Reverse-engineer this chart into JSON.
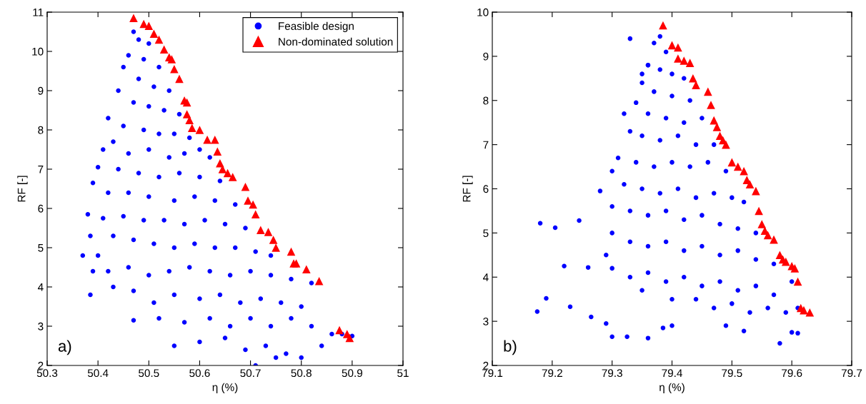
{
  "chart_data": [
    {
      "type": "scatter",
      "xlabel": "η (%)",
      "ylabel": "RF [-]",
      "annotations": [
        "a)"
      ],
      "legend": "top right",
      "grid": false,
      "xlim": [
        50.3,
        51
      ],
      "xticks": [
        50.3,
        50.4,
        50.5,
        50.6,
        50.7,
        50.8,
        50.9,
        51
      ],
      "ylim": [
        2,
        11
      ],
      "yticks": [
        2,
        3,
        4,
        5,
        6,
        7,
        8,
        9,
        10,
        11
      ],
      "series": [
        {
          "name": "Feasible design",
          "color": "#0000ff",
          "marker": "circle",
          "x": [
            50.47,
            50.48,
            50.5,
            50.46,
            50.49,
            50.52,
            50.45,
            50.48,
            50.51,
            50.54,
            50.44,
            50.47,
            50.5,
            50.53,
            50.56,
            50.42,
            50.45,
            50.49,
            50.52,
            50.55,
            50.58,
            50.43,
            50.41,
            50.46,
            50.5,
            50.54,
            50.57,
            50.6,
            50.62,
            50.4,
            50.44,
            50.48,
            50.52,
            50.56,
            50.6,
            50.64,
            50.39,
            50.42,
            50.46,
            50.5,
            50.55,
            50.59,
            50.63,
            50.67,
            50.38,
            50.41,
            50.45,
            50.49,
            50.53,
            50.57,
            50.61,
            50.65,
            50.69,
            50.385,
            50.43,
            50.47,
            50.51,
            50.55,
            50.59,
            50.63,
            50.67,
            50.71,
            50.74,
            50.37,
            50.4,
            50.42,
            50.46,
            50.5,
            50.54,
            50.58,
            50.62,
            50.66,
            50.7,
            50.74,
            50.78,
            50.82,
            50.39,
            50.385,
            50.43,
            50.47,
            50.51,
            50.55,
            50.6,
            50.64,
            50.68,
            50.72,
            50.76,
            50.8,
            50.47,
            50.52,
            50.57,
            50.62,
            50.66,
            50.7,
            50.74,
            50.78,
            50.82,
            50.86,
            50.55,
            50.6,
            50.65,
            50.69,
            50.73,
            50.77,
            50.8,
            50.71,
            50.75,
            50.9,
            50.84,
            50.88
          ],
          "values": [
            10.5,
            10.3,
            10.2,
            9.9,
            9.8,
            9.6,
            9.6,
            9.3,
            9.1,
            9.0,
            9.0,
            8.7,
            8.6,
            8.5,
            8.4,
            8.3,
            8.1,
            8.0,
            7.9,
            7.9,
            7.8,
            7.7,
            7.5,
            7.4,
            7.5,
            7.3,
            7.4,
            7.5,
            7.3,
            7.05,
            7.0,
            6.9,
            6.8,
            6.9,
            6.8,
            6.7,
            6.65,
            6.4,
            6.4,
            6.3,
            6.2,
            6.3,
            6.2,
            6.1,
            5.85,
            5.75,
            5.8,
            5.7,
            5.7,
            5.6,
            5.7,
            5.6,
            5.5,
            5.3,
            5.3,
            5.2,
            5.1,
            5.0,
            5.1,
            5.0,
            5.0,
            4.9,
            4.8,
            4.8,
            4.8,
            4.4,
            4.5,
            4.3,
            4.4,
            4.5,
            4.4,
            4.3,
            4.4,
            4.3,
            4.2,
            4.1,
            4.4,
            3.8,
            4.0,
            3.9,
            3.6,
            3.8,
            3.7,
            3.8,
            3.6,
            3.7,
            3.6,
            3.5,
            3.15,
            3.2,
            3.1,
            3.2,
            3.0,
            3.2,
            3.0,
            3.2,
            3.0,
            2.8,
            2.5,
            2.6,
            2.7,
            2.4,
            2.5,
            2.3,
            2.2,
            2.0,
            2.2,
            2.75,
            2.5,
            2.8
          ]
        },
        {
          "name": "Non-dominated solution",
          "color": "#ff0000",
          "marker": "triangle",
          "x": [
            50.47,
            50.49,
            50.5,
            50.51,
            50.52,
            50.53,
            50.54,
            50.545,
            50.55,
            50.56,
            50.57,
            50.575,
            50.575,
            50.58,
            50.585,
            50.6,
            50.615,
            50.63,
            50.635,
            50.64,
            50.645,
            50.655,
            50.665,
            50.69,
            50.695,
            50.705,
            50.71,
            50.72,
            50.735,
            50.745,
            50.75,
            50.78,
            50.785,
            50.79,
            50.81,
            50.835,
            50.875,
            50.89,
            50.895
          ],
          "values": [
            10.85,
            10.7,
            10.65,
            10.45,
            10.3,
            10.05,
            9.85,
            9.8,
            9.55,
            9.3,
            8.75,
            8.7,
            8.4,
            8.25,
            8.05,
            8.0,
            7.75,
            7.75,
            7.45,
            7.15,
            7.0,
            6.9,
            6.8,
            6.55,
            6.2,
            6.1,
            5.85,
            5.45,
            5.4,
            5.2,
            5.0,
            4.9,
            4.6,
            4.6,
            4.45,
            4.15,
            2.9,
            2.8,
            2.7
          ]
        }
      ]
    },
    {
      "type": "scatter",
      "xlabel": "η (%)",
      "ylabel": "RF [-]",
      "annotations": [
        "b)"
      ],
      "grid": false,
      "xlim": [
        79.1,
        79.7
      ],
      "xticks": [
        79.1,
        79.2,
        79.3,
        79.4,
        79.5,
        79.6,
        79.7
      ],
      "ylim": [
        2,
        10
      ],
      "yticks": [
        2,
        3,
        4,
        5,
        6,
        7,
        8,
        9,
        10
      ],
      "series": [
        {
          "color": "#0000ff",
          "marker": "circle",
          "x": [
            79.38,
            79.37,
            79.39,
            79.36,
            79.38,
            79.4,
            79.42,
            79.35,
            79.37,
            79.4,
            79.43,
            79.34,
            79.36,
            79.39,
            79.42,
            79.45,
            79.32,
            79.33,
            79.35,
            79.38,
            79.41,
            79.44,
            79.47,
            79.31,
            79.34,
            79.37,
            79.4,
            79.43,
            79.46,
            79.49,
            79.3,
            79.32,
            79.35,
            79.38,
            79.41,
            79.44,
            79.47,
            79.5,
            79.52,
            79.28,
            79.3,
            79.33,
            79.36,
            79.39,
            79.42,
            79.45,
            79.48,
            79.51,
            79.54,
            79.3,
            79.33,
            79.36,
            79.39,
            79.42,
            79.45,
            79.48,
            79.51,
            79.54,
            79.57,
            79.29,
            79.3,
            79.33,
            79.36,
            79.39,
            79.42,
            79.45,
            79.48,
            79.51,
            79.54,
            79.57,
            79.6,
            79.35,
            79.4,
            79.44,
            79.47,
            79.5,
            79.53,
            79.56,
            79.59,
            79.61,
            79.18,
            79.205,
            79.245,
            79.22,
            79.26,
            79.19,
            79.175,
            79.23,
            79.265,
            79.29,
            79.3,
            79.325,
            79.36,
            79.385,
            79.4,
            79.49,
            79.52,
            79.58,
            79.6,
            79.61,
            79.33,
            79.36,
            79.35
          ],
          "values": [
            9.45,
            9.3,
            9.1,
            8.8,
            8.7,
            8.6,
            8.5,
            8.4,
            8.2,
            8.1,
            8.0,
            7.95,
            7.7,
            7.6,
            7.5,
            7.6,
            7.7,
            7.3,
            7.2,
            7.1,
            7.2,
            7.0,
            7.0,
            6.7,
            6.6,
            6.5,
            6.6,
            6.5,
            6.6,
            6.4,
            6.4,
            6.1,
            6.0,
            5.9,
            6.0,
            5.8,
            5.9,
            5.8,
            5.7,
            5.95,
            5.6,
            5.5,
            5.4,
            5.5,
            5.3,
            5.4,
            5.2,
            5.1,
            5.0,
            5.0,
            4.8,
            4.7,
            4.8,
            4.6,
            4.7,
            4.5,
            4.6,
            4.4,
            4.3,
            4.5,
            4.2,
            4.0,
            4.1,
            3.9,
            4.0,
            3.8,
            3.9,
            3.7,
            3.8,
            3.6,
            3.9,
            3.7,
            3.5,
            3.5,
            3.3,
            3.4,
            3.2,
            3.3,
            3.2,
            3.3,
            5.22,
            5.12,
            5.28,
            4.25,
            4.22,
            3.52,
            3.22,
            3.33,
            3.1,
            2.95,
            2.65,
            2.65,
            2.62,
            2.85,
            2.9,
            2.9,
            2.78,
            2.5,
            2.75,
            2.73,
            9.4,
            8.8,
            8.6
          ]
        },
        {
          "color": "#ff0000",
          "marker": "triangle",
          "x": [
            79.385,
            79.4,
            79.41,
            79.41,
            79.42,
            79.43,
            79.435,
            79.44,
            79.46,
            79.465,
            79.47,
            79.475,
            79.48,
            79.485,
            79.49,
            79.5,
            79.51,
            79.52,
            79.525,
            79.53,
            79.54,
            79.545,
            79.55,
            79.555,
            79.56,
            79.57,
            79.58,
            79.585,
            79.59,
            79.6,
            79.605,
            79.61,
            79.615,
            79.62,
            79.63
          ],
          "values": [
            9.7,
            9.25,
            9.2,
            8.95,
            8.9,
            8.85,
            8.5,
            8.35,
            8.2,
            7.9,
            7.55,
            7.4,
            7.2,
            7.1,
            7.0,
            6.6,
            6.5,
            6.4,
            6.2,
            6.1,
            5.95,
            5.5,
            5.2,
            5.05,
            4.95,
            4.85,
            4.5,
            4.4,
            4.35,
            4.25,
            4.2,
            3.9,
            3.3,
            3.25,
            3.2
          ]
        }
      ]
    }
  ]
}
